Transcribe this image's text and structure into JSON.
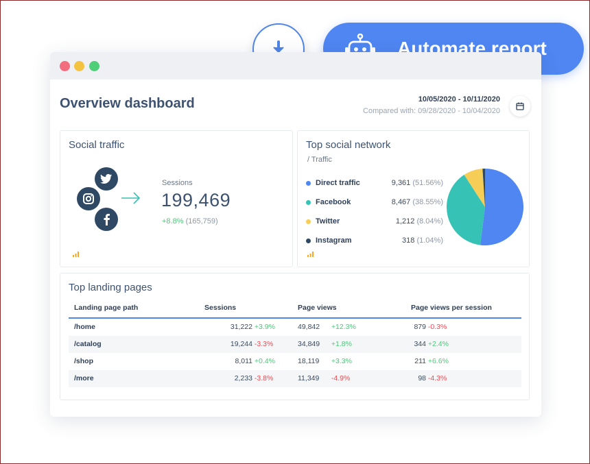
{
  "header": {
    "title": "Overview dashboard",
    "date_range": "10/05/2020 - 10/11/2020",
    "compared": "Compared with: 09/28/2020 - 10/04/2020"
  },
  "actions": {
    "automate_label": "Automate report"
  },
  "social_traffic": {
    "title": "Social traffic",
    "sessions_label": "Sessions",
    "sessions_value": "199,469",
    "change": "+8.8%",
    "previous": "(165,759)"
  },
  "top_network": {
    "title": "Top social network",
    "subtitle": "/ Traffic",
    "items": [
      {
        "name": "Direct traffic",
        "value": "9,361",
        "pct": "(51.56%)",
        "color": "#4f86f2"
      },
      {
        "name": "Facebook",
        "value": "8,467",
        "pct": "(38.55%)",
        "color": "#36c2b4"
      },
      {
        "name": "Twitter",
        "value": "1,212",
        "pct": "(8.04%)",
        "color": "#f5cd57"
      },
      {
        "name": "Instagram",
        "value": "318",
        "pct": "(1.04%)",
        "color": "#2f4964"
      }
    ]
  },
  "landing_pages": {
    "title": "Top landing pages",
    "columns": [
      "Landing page path",
      "Sessions",
      "Page views",
      "Page views per session"
    ],
    "rows": [
      {
        "path": "/home",
        "sessions": "31,222",
        "sessions_change": "+3.9%",
        "views": "49,842",
        "views_change": "+12.3%",
        "pvs": "879",
        "pvs_change": "-0.3%"
      },
      {
        "path": "/catalog",
        "sessions": "19,244",
        "sessions_change": "-3.3%",
        "views": "34,849",
        "views_change": "+1.8%",
        "pvs": "344",
        "pvs_change": "+2.4%"
      },
      {
        "path": "/shop",
        "sessions": "8,011",
        "sessions_change": "+0.4%",
        "views": "18,119",
        "views_change": "+3.3%",
        "pvs": "211",
        "pvs_change": "+6.6%"
      },
      {
        "path": "/more",
        "sessions": "2,233",
        "sessions_change": "-3.8%",
        "views": "11,349",
        "views_change": "-4.9%",
        "pvs": "98",
        "pvs_change": "-4.3%"
      }
    ]
  },
  "chart_data": {
    "type": "pie",
    "categories": [
      "Direct traffic",
      "Facebook",
      "Twitter",
      "Instagram"
    ],
    "values": [
      51.56,
      38.55,
      8.04,
      1.04
    ],
    "colors": [
      "#4f86f2",
      "#36c2b4",
      "#f5cd57",
      "#2f4964"
    ]
  }
}
